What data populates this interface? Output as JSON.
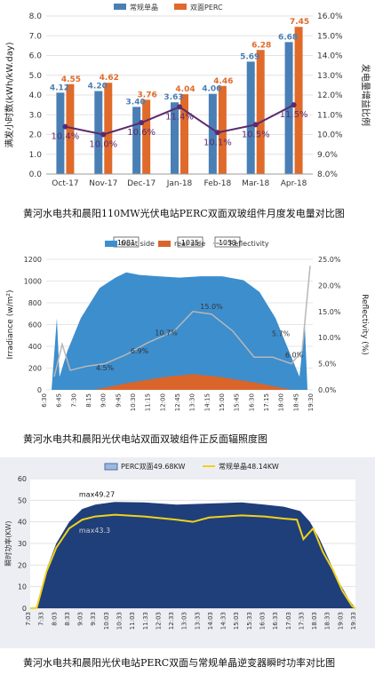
{
  "captions": {
    "c1": "黄河水电共和晨阳110MW光伏电站PERC双面双玻组件月度发电量对比图",
    "c2": "黄河水电共和晨阳光伏电站双面双玻组件正反面辐照度图",
    "c3": "黄河水电共和晨阳光伏电站PERC双面与常规单晶逆变器瞬时功率对比图"
  },
  "chart_data": [
    {
      "type": "bar",
      "categories": [
        "Oct-17",
        "Nov-17",
        "Dec-17",
        "Jan-18",
        "Feb-18",
        "Mar-18",
        "Apr-18"
      ],
      "series": [
        {
          "name": "常规单晶",
          "color": "#4a7fb5",
          "values": [
            4.12,
            4.2,
            3.4,
            3.63,
            4.06,
            5.69,
            6.68
          ]
        },
        {
          "name": "双面PERC",
          "color": "#e06a2a",
          "values": [
            4.55,
            4.62,
            3.76,
            4.04,
            4.46,
            6.28,
            7.45
          ]
        }
      ],
      "line": {
        "color": "#5b2a6e",
        "values": [
          10.4,
          10.0,
          10.6,
          11.4,
          10.1,
          10.5,
          11.5
        ],
        "labels": [
          "10.4%",
          "10.0%",
          "10.6%",
          "11.4%",
          "10.1%",
          "10.5%",
          "11.5%"
        ]
      },
      "ylabel": "满发小时数(kWh/kW.day)",
      "y2label": "发电量增益比例",
      "ylim": [
        0,
        8
      ],
      "y2lim": [
        8,
        16
      ],
      "yticks": [
        "0.0",
        "1.0",
        "2.0",
        "3.0",
        "4.0",
        "5.0",
        "6.0",
        "7.0",
        "8.0"
      ],
      "y2ticks": [
        "8.0%",
        "9.0%",
        "10.0%",
        "11.0%",
        "12.0%",
        "13.0%",
        "14.0%",
        "15.0%",
        "16.0%"
      ]
    },
    {
      "type": "area",
      "series": [
        {
          "name": "front side",
          "color": "#3d8ecd"
        },
        {
          "name": "rear side",
          "color": "#d9652b"
        },
        {
          "name": "Reflectivity",
          "color": "#b7b7b7"
        }
      ],
      "ylabel": "Irradiance (w/m²)",
      "y2label": "Reflectivity (%)",
      "ylim": [
        0,
        1200
      ],
      "y2lim": [
        0,
        25
      ],
      "yticks": [
        "0",
        "200",
        "400",
        "600",
        "800",
        "1000",
        "1200"
      ],
      "y2ticks": [
        "0.0%",
        "5.0%",
        "10.0%",
        "15.0%",
        "20.0%",
        "25.0%"
      ],
      "xticks": [
        "6:30",
        "6:45",
        "7:30",
        "8:15",
        "9:00",
        "9:45",
        "10:30",
        "11:15",
        "12:00",
        "12:45",
        "13:30",
        "14:15",
        "15:00",
        "15:45",
        "16:30",
        "17:15",
        "18:00",
        "18:45",
        "19:30"
      ],
      "peak_labels": [
        "1081",
        "1035",
        "1053"
      ],
      "reflectivity_labels": [
        "4.5%",
        "6.9%",
        "10.7%",
        "15.0%",
        "5.7%",
        "6.0%"
      ]
    },
    {
      "type": "area",
      "series": [
        {
          "name": "PERC双面49.68KW",
          "color": "#1f3f7a"
        },
        {
          "name": "常规单晶48.14KW",
          "color": "#f0d21c"
        }
      ],
      "annotations": [
        "max49.27",
        "max43.3"
      ],
      "ylabel": "瞬时功率(KW)",
      "ylim": [
        0,
        60
      ],
      "yticks": [
        "0",
        "10",
        "20",
        "30",
        "40",
        "50",
        "60"
      ],
      "xticks": [
        "7:03",
        "7:33",
        "8:03",
        "8:33",
        "9:03",
        "9:33",
        "10:03",
        "10:33",
        "11:03",
        "11:33",
        "12:03",
        "12:33",
        "13:03",
        "13:33",
        "14:03",
        "14:33",
        "15:03",
        "15:33",
        "16:03",
        "16:33",
        "17:03",
        "17:33",
        "18:03",
        "18:33",
        "19:03",
        "19:33"
      ]
    }
  ]
}
